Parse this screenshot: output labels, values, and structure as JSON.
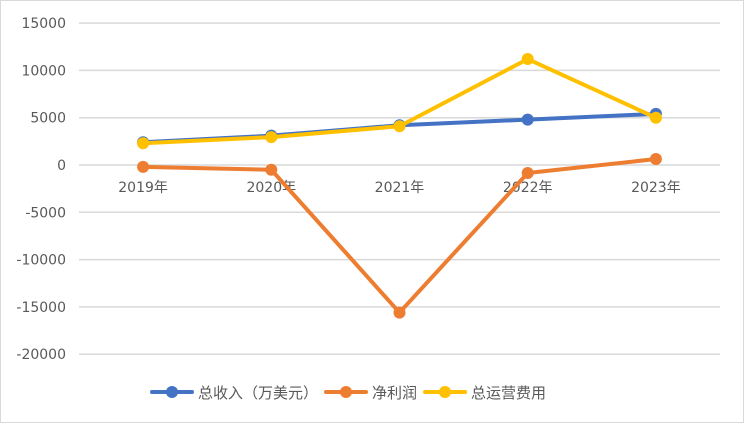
{
  "chart_data": {
    "type": "line",
    "title": "",
    "xlabel": "",
    "ylabel": "",
    "categories": [
      "2019年",
      "2020年",
      "2021年",
      "2022年",
      "2023年"
    ],
    "yticks": [
      15000,
      10000,
      5000,
      0,
      -5000,
      -10000,
      -15000,
      -20000
    ],
    "ylim": [
      -20000,
      15000
    ],
    "grid": true,
    "legend_position": "bottom",
    "series": [
      {
        "name": "总收入（万美元）",
        "color": "#4472C4",
        "values": [
          2400,
          3100,
          4200,
          4800,
          5400
        ]
      },
      {
        "name": "净利润",
        "color": "#ED7D31",
        "values": [
          -200,
          -500,
          -15600,
          -850,
          630
        ]
      },
      {
        "name": "总运营费用",
        "color": "#FFC000",
        "values": [
          2300,
          2950,
          4100,
          11200,
          5000
        ]
      }
    ]
  },
  "legend": {
    "items": [
      {
        "label": "总收入（万美元）",
        "color": "#4472C4"
      },
      {
        "label": "净利润",
        "color": "#ED7D31"
      },
      {
        "label": "总运营费用",
        "color": "#FFC000"
      }
    ]
  }
}
